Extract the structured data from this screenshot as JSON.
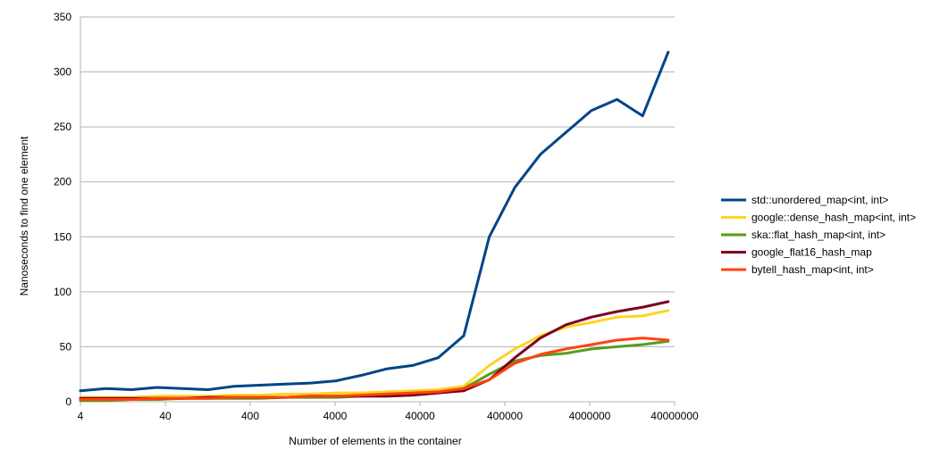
{
  "chart_data": {
    "type": "line",
    "title": "",
    "xlabel": "Number of elements in the container",
    "ylabel": "Nanoseconds to find one element",
    "x_scale": "log",
    "xlim": [
      4,
      40000000
    ],
    "ylim": [
      0,
      350
    ],
    "x_ticks": [
      4,
      40,
      400,
      4000,
      40000,
      400000,
      4000000,
      40000000
    ],
    "x_tick_labels": [
      "4",
      "40",
      "400",
      "4000",
      "40000",
      "400000",
      "4000000",
      "40000000"
    ],
    "y_ticks": [
      0,
      50,
      100,
      150,
      200,
      250,
      300,
      350
    ],
    "y_tick_labels": [
      "0",
      "50",
      "100",
      "150",
      "200",
      "250",
      "300",
      "350"
    ],
    "grid": "horizontal",
    "legend_position": "right",
    "x": [
      4,
      8,
      16,
      32,
      64,
      128,
      256,
      512,
      1024,
      2048,
      4096,
      8192,
      16384,
      32768,
      65536,
      131072,
      262144,
      524288,
      1048576,
      2097152,
      4194304,
      8388608,
      16777216,
      33554432
    ],
    "series": [
      {
        "name": "std::unordered_map<int, int>",
        "color": "#004586",
        "values": [
          10,
          12,
          11,
          13,
          12,
          11,
          14,
          15,
          16,
          17,
          19,
          24,
          30,
          33,
          40,
          60,
          150,
          195,
          225,
          245,
          265,
          275,
          260,
          318
        ]
      },
      {
        "name": "google::dense_hash_map<int, int>",
        "color": "#ffd320",
        "values": [
          4,
          4,
          4,
          5,
          5,
          5,
          6,
          6,
          7,
          7,
          8,
          8,
          9,
          10,
          11,
          14,
          33,
          48,
          60,
          68,
          72,
          77,
          78,
          83
        ]
      },
      {
        "name": "ska::flat_hash_map<int, int>",
        "color": "#579d1c",
        "values": [
          1,
          1,
          2,
          2,
          3,
          3,
          3,
          3,
          4,
          4,
          4,
          5,
          5,
          6,
          8,
          12,
          25,
          37,
          42,
          44,
          48,
          50,
          52,
          55
        ]
      },
      {
        "name": "google_flat16_hash_map",
        "color": "#7e0021",
        "values": [
          3,
          3,
          3,
          3,
          3,
          4,
          4,
          4,
          4,
          5,
          5,
          5,
          5,
          6,
          8,
          10,
          20,
          40,
          58,
          70,
          77,
          82,
          86,
          91
        ]
      },
      {
        "name": "bytell_hash_map<int, int>",
        "color": "#ff420e",
        "values": [
          2,
          2,
          2,
          3,
          3,
          3,
          4,
          4,
          4,
          5,
          5,
          6,
          7,
          8,
          9,
          12,
          20,
          35,
          43,
          48,
          52,
          56,
          58,
          56
        ]
      }
    ]
  }
}
